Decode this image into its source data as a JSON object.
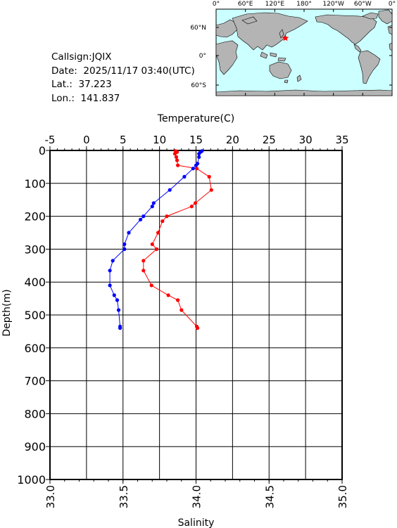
{
  "station": {
    "callsign_label": "Callsign:",
    "callsign": "JQIX",
    "date_label": "Date:",
    "date": "2025/11/17 03:40(UTC)",
    "lat_label": "Lat.:",
    "lat": "37.223",
    "lon_label": "Lon.:",
    "lon": "141.837"
  },
  "map": {
    "top_ticks": [
      "0°",
      "60°E",
      "120°E",
      "180°",
      "120°W",
      "60°W",
      "0°"
    ],
    "left_ticks": [
      "60°N",
      "0°",
      "60°S"
    ],
    "ocean_color": "#ccffff",
    "land_color": "#b4b4b4",
    "marker": "star-icon",
    "marker_color": "#ff0000"
  },
  "chart_data": {
    "type": "line",
    "top_axis": {
      "label": "Temperature(C)",
      "range": [
        -5,
        35
      ],
      "ticks": [
        "-5",
        "0",
        "5",
        "10",
        "15",
        "20",
        "25",
        "30",
        "35"
      ]
    },
    "bottom_axis": {
      "label": "Salinity",
      "range": [
        33.0,
        35.0
      ],
      "ticks": [
        "33.0",
        "33.5",
        "34.0",
        "34.5",
        "35.0"
      ]
    },
    "y_axis": {
      "label": "Depth(m)",
      "range": [
        0,
        1000
      ],
      "inverted": true,
      "ticks": [
        "0",
        "100",
        "200",
        "300",
        "400",
        "500",
        "600",
        "700",
        "800",
        "900",
        "1000"
      ]
    },
    "grid": true,
    "series": [
      {
        "color": "#ff0000",
        "axis": "top",
        "depth": [
          2,
          5,
          10,
          20,
          30,
          45,
          55,
          80,
          120,
          160,
          170,
          200,
          215,
          250,
          285,
          300,
          335,
          365,
          410,
          440,
          455,
          485,
          535,
          540
        ],
        "values": [
          12.2,
          12.4,
          12.1,
          12.3,
          12.4,
          12.5,
          15.1,
          16.8,
          17.1,
          14.9,
          14.4,
          11.0,
          10.4,
          9.8,
          9.0,
          9.6,
          7.8,
          7.8,
          8.9,
          11.2,
          12.5,
          13.0,
          15.1,
          15.2
        ]
      },
      {
        "color": "#0000ff",
        "axis": "bottom",
        "depth": [
          2,
          5,
          10,
          20,
          40,
          45,
          55,
          80,
          120,
          160,
          170,
          200,
          210,
          250,
          285,
          300,
          335,
          365,
          410,
          440,
          455,
          485,
          535,
          540
        ],
        "values": [
          34.04,
          34.03,
          34.02,
          34.02,
          34.01,
          34.0,
          33.98,
          33.92,
          33.82,
          33.71,
          33.7,
          33.64,
          33.62,
          33.54,
          33.51,
          33.51,
          33.43,
          33.41,
          33.41,
          33.44,
          33.46,
          33.47,
          33.48,
          33.48
        ]
      }
    ]
  }
}
